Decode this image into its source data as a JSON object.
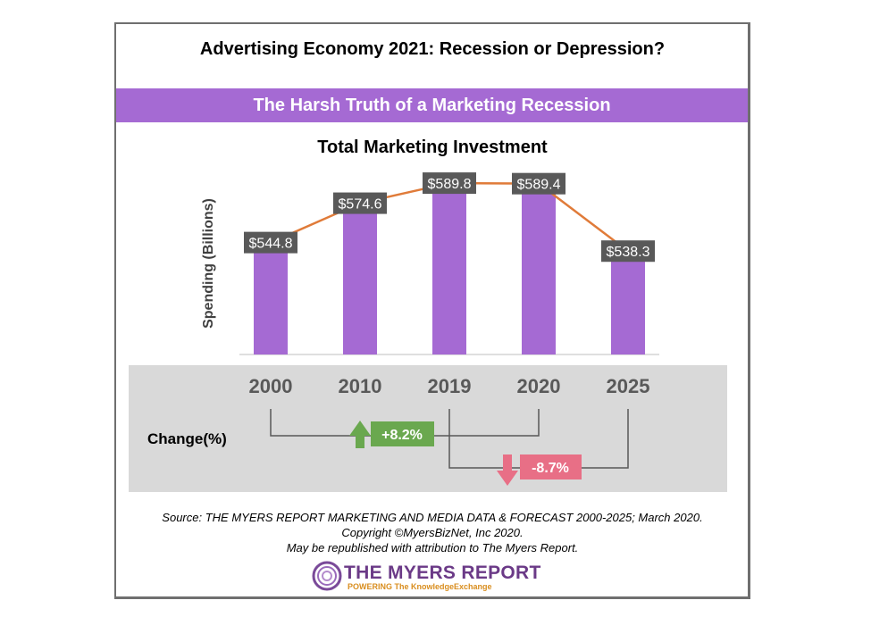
{
  "header": {
    "title": "Advertising Economy 2021: Recession or Depression?",
    "banner": "The Harsh Truth of a Marketing Recession"
  },
  "chart_data": {
    "type": "bar",
    "title": "Total Marketing Investment",
    "ylabel": "Spending (Billions)",
    "xlabel": "",
    "categories": [
      "2000",
      "2010",
      "2019",
      "2020",
      "2025"
    ],
    "values": [
      544.8,
      574.6,
      589.8,
      589.4,
      538.3
    ],
    "data_labels": [
      "$544.8",
      "$574.6",
      "$589.8",
      "$589.4",
      "$538.3"
    ],
    "trend_line": true,
    "ylim": [
      460,
      600
    ],
    "grid": false,
    "colors": {
      "bar": "#a56ad3",
      "line": "#e07b39",
      "label_bg": "#595959",
      "label_text": "#ffffff"
    },
    "changes": [
      {
        "from": "2000",
        "to": "2020",
        "label": "+8.2%",
        "direction": "up",
        "color": "#6aa84f"
      },
      {
        "from": "2019",
        "to": "2025",
        "label": "-8.7%",
        "direction": "down",
        "color": "#e86f86"
      }
    ],
    "change_axis_label": "Change(%)"
  },
  "footer": {
    "source_line1": "Source: THE MYERS REPORT MARKETING AND MEDIA DATA & FORECAST 2000-2025; March 2020.",
    "source_line2": "Copyright ©MyersBizNet, Inc 2020.",
    "source_line3": "May be republished with attribution to The Myers Report.",
    "logo_name": "THE MYERS REPORT",
    "logo_tagline": "POWERING The KnowledgeExchange"
  }
}
